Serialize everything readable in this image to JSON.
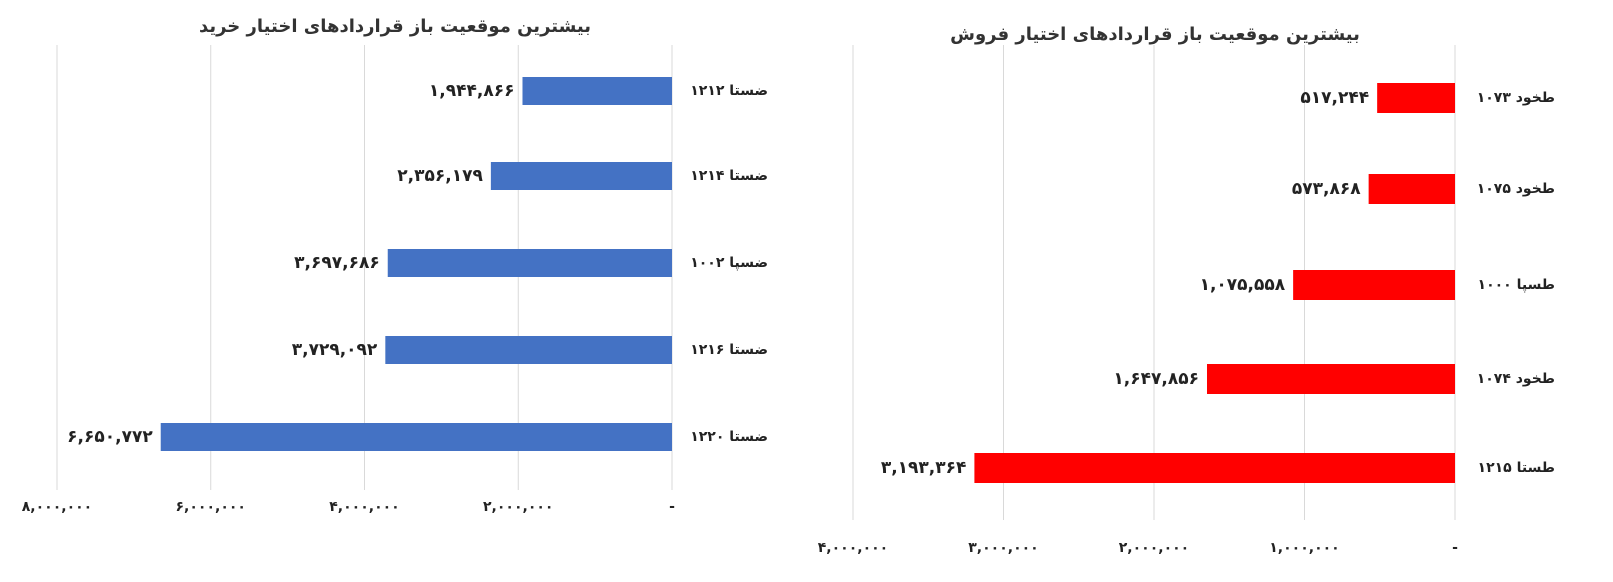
{
  "chart_data": [
    {
      "type": "bar",
      "orientation": "horizontal",
      "x_reversed": true,
      "grid": true,
      "title": "بیشترین موقعیت باز قراردادهای اختیار خرید",
      "categories": [
        "ضستا ۱۲۱۲",
        "ضستا ۱۲۱۴",
        "ضسپا ۱۰۰۲",
        "ضستا ۱۲۱۶",
        "ضستا ۱۲۲۰"
      ],
      "values": [
        1944866,
        2356179,
        3697686,
        3729092,
        6650772
      ],
      "value_labels": [
        "۱,۹۴۴,۸۶۶",
        "۲,۳۵۶,۱۷۹",
        "۳,۶۹۷,۶۸۶",
        "۳,۷۲۹,۰۹۲",
        "۶,۶۵۰,۷۷۲"
      ],
      "color": "#4472c4",
      "xlim": [
        0,
        8000000
      ],
      "xticks": [
        {
          "value": 0,
          "label": "-"
        },
        {
          "value": 2000000,
          "label": "۲,۰۰۰,۰۰۰"
        },
        {
          "value": 4000000,
          "label": "۴,۰۰۰,۰۰۰"
        },
        {
          "value": 6000000,
          "label": "۶,۰۰۰,۰۰۰"
        },
        {
          "value": 8000000,
          "label": "۸,۰۰۰,۰۰۰"
        }
      ]
    },
    {
      "type": "bar",
      "orientation": "horizontal",
      "x_reversed": true,
      "grid": true,
      "title": "بیشترین موقعیت باز قراردادهای اختیار فروش",
      "categories": [
        "طخود ۱۰۷۳",
        "طخود ۱۰۷۵",
        "طسپا ۱۰۰۰",
        "طخود ۱۰۷۴",
        "طستا ۱۲۱۵"
      ],
      "values": [
        517244,
        573868,
        1075558,
        1647856,
        3193364
      ],
      "value_labels": [
        "۵۱۷,۲۴۴",
        "۵۷۳,۸۶۸",
        "۱,۰۷۵,۵۵۸",
        "۱,۶۴۷,۸۵۶",
        "۳,۱۹۳,۳۶۴"
      ],
      "color": "#ff0000",
      "xlim": [
        0,
        4000000
      ],
      "xticks": [
        {
          "value": 0,
          "label": "-"
        },
        {
          "value": 1000000,
          "label": "۱,۰۰۰,۰۰۰"
        },
        {
          "value": 2000000,
          "label": "۲,۰۰۰,۰۰۰"
        },
        {
          "value": 3000000,
          "label": "۳,۰۰۰,۰۰۰"
        },
        {
          "value": 4000000,
          "label": "۴,۰۰۰,۰۰۰"
        }
      ]
    }
  ]
}
